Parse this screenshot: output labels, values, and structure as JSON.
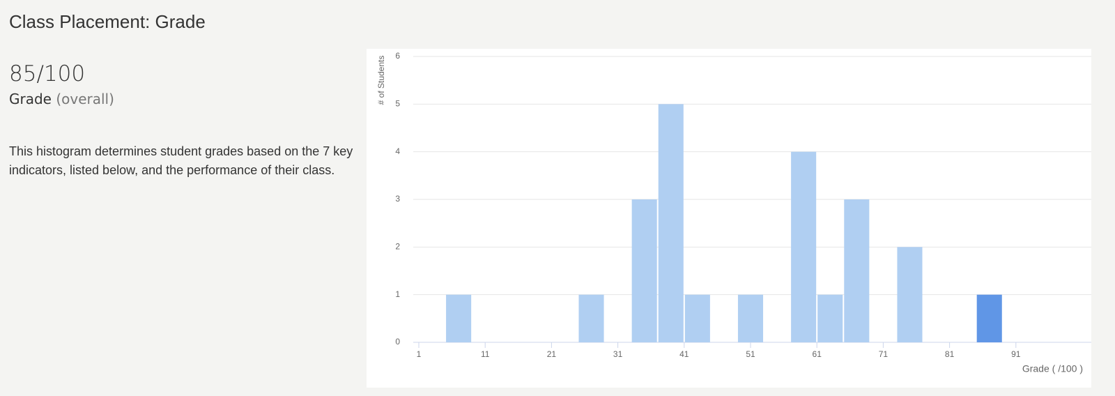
{
  "header": {
    "title": "Class Placement: Grade"
  },
  "summary": {
    "score": "85/100",
    "label": "Grade",
    "qualifier": "(overall)",
    "description": "This histogram determines student grades based on the 7 key indicators, listed below, and the performance of their class."
  },
  "chart_data": {
    "type": "histogram",
    "x_label": "Grade ( /100 )",
    "y_label": "# of Students",
    "bins": [
      1,
      5,
      9,
      13,
      17,
      21,
      25,
      29,
      33,
      37,
      41,
      45,
      49,
      53,
      57,
      61,
      65,
      69,
      73,
      77,
      81,
      85,
      89,
      93,
      97,
      101
    ],
    "values": [
      0,
      1,
      0,
      0,
      0,
      0,
      1,
      0,
      3,
      5,
      1,
      0,
      1,
      0,
      4,
      1,
      3,
      0,
      2,
      0,
      0,
      1,
      0,
      0,
      0
    ],
    "bar_colors": [
      "#b0cff2",
      "#b0cff2",
      "#b0cff2",
      "#b0cff2",
      "#b0cff2",
      "#b0cff2",
      "#b0cff2",
      "#b0cff2",
      "#b0cff2",
      "#b0cff2",
      "#b0cff2",
      "#b0cff2",
      "#b0cff2",
      "#b0cff2",
      "#b0cff2",
      "#b0cff2",
      "#b0cff2",
      "#b0cff2",
      "#b0cff2",
      "#b0cff2",
      "#b0cff2",
      "#6096e6",
      "#b0cff2",
      "#b0cff2",
      "#b0cff2"
    ],
    "xlim": [
      1,
      101
    ],
    "xticks": [
      1,
      11,
      21,
      31,
      41,
      51,
      61,
      71,
      81,
      91
    ],
    "ylim": [
      0,
      6
    ],
    "yticks": [
      0,
      1,
      2,
      3,
      4,
      5,
      6
    ],
    "grid": true
  }
}
